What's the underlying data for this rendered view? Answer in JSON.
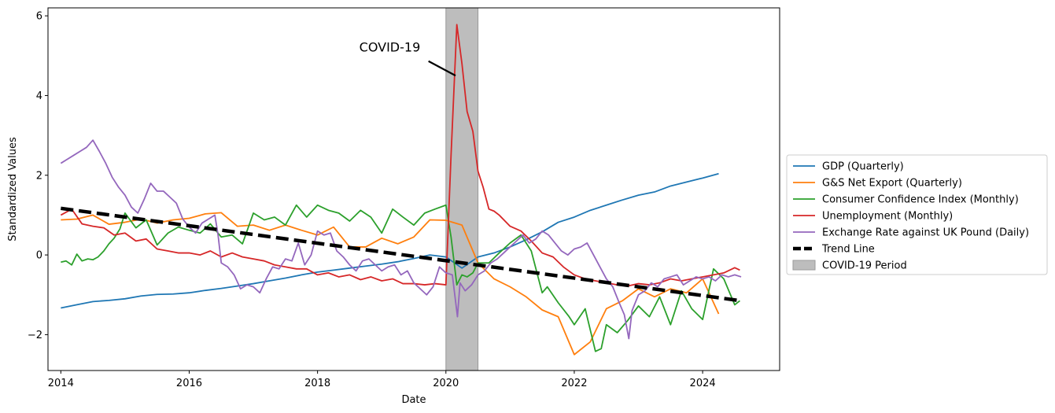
{
  "chart_data": {
    "type": "line",
    "title": "",
    "xlabel": "Date",
    "ylabel": "Standardized Values",
    "xlim": [
      2013.8,
      2025.2
    ],
    "ylim": [
      -2.9,
      6.2
    ],
    "x_ticks": [
      2014,
      2016,
      2018,
      2020,
      2022,
      2024
    ],
    "x_tick_labels": [
      "2014",
      "2016",
      "2018",
      "2020",
      "2022",
      "2024"
    ],
    "y_ticks": [
      -2,
      0,
      2,
      4,
      6
    ],
    "y_tick_labels": [
      "−2",
      "0",
      "2",
      "4",
      "6"
    ],
    "grid": false,
    "legend_position": "center-right-outside",
    "series": [
      {
        "name": "GDP (Quarterly)",
        "color": "#1f77b4",
        "style": "solid",
        "x": [
          2014.0,
          2014.25,
          2014.5,
          2014.75,
          2015.0,
          2015.25,
          2015.5,
          2015.75,
          2016.0,
          2016.25,
          2016.5,
          2016.75,
          2017.0,
          2017.25,
          2017.5,
          2017.75,
          2018.0,
          2018.25,
          2018.5,
          2018.75,
          2019.0,
          2019.25,
          2019.5,
          2019.75,
          2020.0,
          2020.25,
          2020.5,
          2020.75,
          2021.0,
          2021.25,
          2021.5,
          2021.75,
          2022.0,
          2022.25,
          2022.5,
          2022.75,
          2023.0,
          2023.25,
          2023.5,
          2023.75,
          2024.0,
          2024.25
        ],
        "values": [
          -1.33,
          -1.25,
          -1.17,
          -1.14,
          -1.1,
          -1.03,
          -0.99,
          -0.98,
          -0.95,
          -0.89,
          -0.84,
          -0.78,
          -0.72,
          -0.65,
          -0.58,
          -0.5,
          -0.43,
          -0.38,
          -0.33,
          -0.28,
          -0.23,
          -0.17,
          -0.09,
          0.0,
          -0.05,
          -0.33,
          -0.05,
          0.05,
          0.2,
          0.38,
          0.58,
          0.82,
          0.95,
          1.12,
          1.25,
          1.38,
          1.5,
          1.58,
          1.73,
          1.83,
          1.93,
          2.04
        ]
      },
      {
        "name": "G&S Net Export (Quarterly)",
        "color": "#ff7f0e",
        "style": "solid",
        "x": [
          2014.0,
          2014.25,
          2014.5,
          2014.75,
          2015.0,
          2015.25,
          2015.5,
          2015.75,
          2016.0,
          2016.25,
          2016.5,
          2016.75,
          2017.0,
          2017.25,
          2017.5,
          2017.75,
          2018.0,
          2018.25,
          2018.5,
          2018.75,
          2019.0,
          2019.25,
          2019.5,
          2019.75,
          2020.0,
          2020.25,
          2020.5,
          2020.75,
          2021.0,
          2021.25,
          2021.5,
          2021.75,
          2022.0,
          2022.25,
          2022.5,
          2022.75,
          2023.0,
          2023.25,
          2023.5,
          2023.75,
          2024.0,
          2024.25
        ],
        "values": [
          0.88,
          0.9,
          1.0,
          0.77,
          0.82,
          0.9,
          0.8,
          0.88,
          0.92,
          1.03,
          1.06,
          0.72,
          0.75,
          0.62,
          0.75,
          0.62,
          0.5,
          0.7,
          0.2,
          0.2,
          0.42,
          0.28,
          0.45,
          0.88,
          0.87,
          0.75,
          -0.2,
          -0.6,
          -0.8,
          -1.05,
          -1.38,
          -1.55,
          -2.5,
          -2.18,
          -1.35,
          -1.15,
          -0.85,
          -1.05,
          -0.85,
          -0.95,
          -0.6,
          -1.48
        ]
      },
      {
        "name": "Consumer Confidence Index (Monthly)",
        "color": "#2ca02c",
        "style": "solid",
        "x": [
          2014.0,
          2014.08,
          2014.17,
          2014.25,
          2014.33,
          2014.42,
          2014.5,
          2014.58,
          2014.67,
          2014.75,
          2014.83,
          2014.92,
          2015.0,
          2015.17,
          2015.33,
          2015.5,
          2015.67,
          2015.83,
          2016.0,
          2016.17,
          2016.33,
          2016.5,
          2016.67,
          2016.83,
          2017.0,
          2017.17,
          2017.33,
          2017.5,
          2017.67,
          2017.83,
          2018.0,
          2018.17,
          2018.33,
          2018.5,
          2018.67,
          2018.83,
          2019.0,
          2019.17,
          2019.33,
          2019.5,
          2019.67,
          2019.83,
          2020.0,
          2020.08,
          2020.17,
          2020.25,
          2020.33,
          2020.42,
          2020.5,
          2020.67,
          2020.83,
          2021.0,
          2021.17,
          2021.33,
          2021.5,
          2021.58,
          2021.75,
          2021.92,
          2022.0,
          2022.17,
          2022.33,
          2022.42,
          2022.5,
          2022.67,
          2022.83,
          2023.0,
          2023.17,
          2023.33,
          2023.5,
          2023.67,
          2023.83,
          2024.0,
          2024.17,
          2024.33,
          2024.5,
          2024.58
        ],
        "values": [
          -0.18,
          -0.15,
          -0.25,
          0.02,
          -0.15,
          -0.1,
          -0.12,
          -0.05,
          0.1,
          0.28,
          0.42,
          0.65,
          1.05,
          0.68,
          0.88,
          0.25,
          0.55,
          0.7,
          0.62,
          0.55,
          0.78,
          0.45,
          0.5,
          0.28,
          1.05,
          0.88,
          0.95,
          0.75,
          1.25,
          0.95,
          1.25,
          1.12,
          1.05,
          0.85,
          1.12,
          0.95,
          0.55,
          1.15,
          0.95,
          0.75,
          1.05,
          1.15,
          1.25,
          0.45,
          -0.75,
          -0.5,
          -0.55,
          -0.45,
          -0.2,
          -0.2,
          0.05,
          0.3,
          0.5,
          0.1,
          -0.95,
          -0.8,
          -1.2,
          -1.55,
          -1.75,
          -1.35,
          -2.42,
          -2.35,
          -1.75,
          -1.95,
          -1.65,
          -1.28,
          -1.55,
          -1.05,
          -1.75,
          -0.9,
          -1.35,
          -1.62,
          -0.35,
          -0.6,
          -1.25,
          -1.15
        ]
      },
      {
        "name": "Unemployment (Monthly)",
        "color": "#d62728",
        "style": "solid",
        "x": [
          2014.0,
          2014.17,
          2014.33,
          2014.5,
          2014.67,
          2014.83,
          2015.0,
          2015.17,
          2015.33,
          2015.5,
          2015.67,
          2015.83,
          2016.0,
          2016.17,
          2016.33,
          2016.5,
          2016.67,
          2016.83,
          2017.0,
          2017.17,
          2017.33,
          2017.5,
          2017.67,
          2017.83,
          2018.0,
          2018.17,
          2018.33,
          2018.5,
          2018.67,
          2018.83,
          2019.0,
          2019.17,
          2019.33,
          2019.5,
          2019.67,
          2019.83,
          2020.0,
          2020.08,
          2020.17,
          2020.25,
          2020.33,
          2020.42,
          2020.5,
          2020.58,
          2020.67,
          2020.75,
          2020.83,
          2021.0,
          2021.17,
          2021.33,
          2021.5,
          2021.67,
          2021.83,
          2022.0,
          2022.17,
          2022.33,
          2022.5,
          2022.67,
          2022.83,
          2023.0,
          2023.17,
          2023.33,
          2023.5,
          2023.67,
          2023.83,
          2024.0,
          2024.17,
          2024.33,
          2024.5,
          2024.58
        ],
        "values": [
          1.0,
          1.15,
          0.78,
          0.72,
          0.68,
          0.5,
          0.55,
          0.35,
          0.4,
          0.15,
          0.1,
          0.05,
          0.05,
          0.0,
          0.1,
          -0.05,
          0.05,
          -0.05,
          -0.1,
          -0.15,
          -0.25,
          -0.3,
          -0.35,
          -0.35,
          -0.5,
          -0.45,
          -0.55,
          -0.5,
          -0.62,
          -0.55,
          -0.65,
          -0.6,
          -0.72,
          -0.72,
          -0.75,
          -0.72,
          -0.75,
          2.5,
          5.78,
          4.8,
          3.6,
          3.1,
          2.1,
          1.7,
          1.15,
          1.1,
          1.0,
          0.72,
          0.6,
          0.35,
          0.05,
          -0.05,
          -0.3,
          -0.5,
          -0.6,
          -0.65,
          -0.7,
          -0.75,
          -0.78,
          -0.72,
          -0.75,
          -0.7,
          -0.6,
          -0.65,
          -0.6,
          -0.55,
          -0.5,
          -0.45,
          -0.32,
          -0.38
        ]
      },
      {
        "name": "Exchange Rate against UK Pound (Daily)",
        "color": "#9467bd",
        "style": "solid",
        "x": [
          2014.0,
          2014.1,
          2014.2,
          2014.3,
          2014.4,
          2014.5,
          2014.6,
          2014.7,
          2014.8,
          2014.9,
          2015.0,
          2015.1,
          2015.2,
          2015.3,
          2015.4,
          2015.5,
          2015.6,
          2015.7,
          2015.8,
          2015.9,
          2016.0,
          2016.1,
          2016.2,
          2016.3,
          2016.4,
          2016.45,
          2016.5,
          2016.6,
          2016.7,
          2016.8,
          2016.9,
          2017.0,
          2017.1,
          2017.2,
          2017.3,
          2017.4,
          2017.5,
          2017.6,
          2017.7,
          2017.8,
          2017.9,
          2018.0,
          2018.1,
          2018.2,
          2018.3,
          2018.4,
          2018.5,
          2018.6,
          2018.7,
          2018.8,
          2018.9,
          2019.0,
          2019.1,
          2019.2,
          2019.3,
          2019.4,
          2019.5,
          2019.6,
          2019.7,
          2019.8,
          2019.9,
          2020.0,
          2020.1,
          2020.18,
          2020.22,
          2020.3,
          2020.4,
          2020.5,
          2020.6,
          2020.7,
          2020.8,
          2020.9,
          2021.0,
          2021.1,
          2021.2,
          2021.3,
          2021.4,
          2021.5,
          2021.6,
          2021.7,
          2021.8,
          2021.9,
          2022.0,
          2022.1,
          2022.2,
          2022.3,
          2022.4,
          2022.5,
          2022.6,
          2022.7,
          2022.78,
          2022.85,
          2022.9,
          2023.0,
          2023.1,
          2023.2,
          2023.3,
          2023.4,
          2023.5,
          2023.6,
          2023.7,
          2023.8,
          2023.9,
          2024.0,
          2024.1,
          2024.2,
          2024.3,
          2024.4,
          2024.5,
          2024.6
        ],
        "values": [
          2.3,
          2.4,
          2.5,
          2.6,
          2.7,
          2.88,
          2.6,
          2.3,
          1.95,
          1.7,
          1.5,
          1.2,
          1.05,
          1.4,
          1.8,
          1.6,
          1.6,
          1.45,
          1.3,
          0.9,
          0.7,
          0.55,
          0.8,
          0.9,
          1.0,
          0.5,
          -0.2,
          -0.3,
          -0.5,
          -0.85,
          -0.75,
          -0.8,
          -0.95,
          -0.6,
          -0.3,
          -0.35,
          -0.1,
          -0.15,
          0.3,
          -0.25,
          0.0,
          0.6,
          0.5,
          0.55,
          0.1,
          -0.05,
          -0.25,
          -0.4,
          -0.15,
          -0.1,
          -0.25,
          -0.4,
          -0.3,
          -0.25,
          -0.5,
          -0.4,
          -0.7,
          -0.85,
          -1.0,
          -0.8,
          -0.3,
          -0.45,
          -0.5,
          -1.55,
          -0.7,
          -0.9,
          -0.75,
          -0.5,
          -0.4,
          -0.2,
          -0.1,
          0.05,
          0.2,
          0.35,
          0.5,
          0.3,
          0.4,
          0.6,
          0.5,
          0.3,
          0.1,
          0.0,
          0.15,
          0.2,
          0.3,
          0.0,
          -0.3,
          -0.6,
          -0.8,
          -1.2,
          -1.5,
          -2.1,
          -1.4,
          -1.0,
          -0.9,
          -0.7,
          -0.8,
          -0.6,
          -0.55,
          -0.5,
          -0.75,
          -0.65,
          -0.55,
          -0.6,
          -0.55,
          -0.65,
          -0.5,
          -0.55,
          -0.5,
          -0.55
        ]
      },
      {
        "name": "Trend Line",
        "color": "#000000",
        "style": "dashed",
        "x": [
          2014.0,
          2024.6
        ],
        "values": [
          1.17,
          -1.15
        ]
      }
    ],
    "shaded_regions": [
      {
        "name": "COVID-19 Period",
        "x_start": 2020.0,
        "x_end": 2020.5,
        "color": "#bdbdbd"
      }
    ],
    "annotations": [
      {
        "text": "COVID-19",
        "text_x": 2018.65,
        "text_y": 5.1,
        "arrow_to_x": 2020.15,
        "arrow_to_y": 4.5
      }
    ]
  }
}
